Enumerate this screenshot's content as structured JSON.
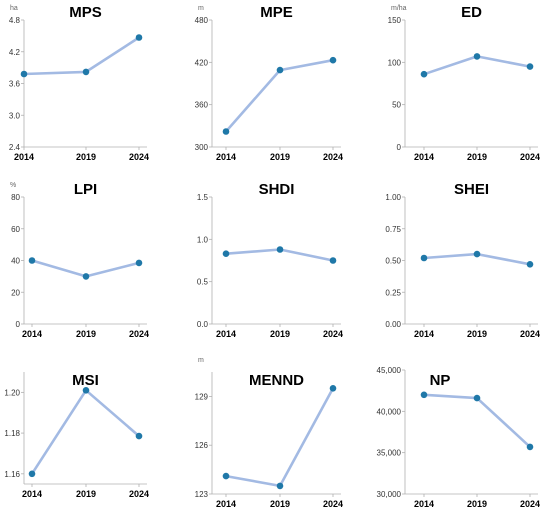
{
  "chart_data": [
    {
      "type": "line",
      "title": "MPS",
      "unit": "ha",
      "categories": [
        "2014",
        "2019",
        "2024"
      ],
      "values": [
        3.78,
        3.82,
        4.47
      ],
      "ylim": [
        2.4,
        4.8
      ],
      "yticks": [
        "2.4",
        "3.0",
        "3.6",
        "4.2",
        "4.8"
      ],
      "line_color": "#a3bae3",
      "marker_color": "#1f78a8"
    },
    {
      "type": "line",
      "title": "MPE",
      "unit": "m",
      "categories": [
        "2014",
        "2019",
        "2024"
      ],
      "values": [
        322,
        409,
        423
      ],
      "ylim": [
        300,
        480
      ],
      "yticks": [
        "300",
        "360",
        "420",
        "480"
      ],
      "line_color": "#a3bae3",
      "marker_color": "#1f78a8"
    },
    {
      "type": "line",
      "title": "ED",
      "unit": "m/ha",
      "categories": [
        "2014",
        "2019",
        "2024"
      ],
      "values": [
        86,
        107,
        95
      ],
      "ylim": [
        0,
        150
      ],
      "yticks": [
        "0",
        "50",
        "100",
        "150"
      ],
      "line_color": "#a3bae3",
      "marker_color": "#1f78a8"
    },
    {
      "type": "line",
      "title": "LPI",
      "unit": "%",
      "categories": [
        "2014",
        "2019",
        "2024"
      ],
      "values": [
        40,
        30,
        38.5
      ],
      "ylim": [
        0,
        80
      ],
      "yticks": [
        "0",
        "20",
        "40",
        "60",
        "80"
      ],
      "line_color": "#a3bae3",
      "marker_color": "#1f78a8"
    },
    {
      "type": "line",
      "title": "SHDI",
      "unit": "",
      "categories": [
        "2014",
        "2019",
        "2024"
      ],
      "values": [
        0.83,
        0.88,
        0.75
      ],
      "ylim": [
        0,
        1.5
      ],
      "yticks": [
        "0.0",
        "0.5",
        "1.0",
        "1.5"
      ],
      "line_color": "#a3bae3",
      "marker_color": "#1f78a8"
    },
    {
      "type": "line",
      "title": "SHEI",
      "unit": "",
      "categories": [
        "2014",
        "2019",
        "2024"
      ],
      "values": [
        0.52,
        0.55,
        0.47
      ],
      "ylim": [
        0,
        1
      ],
      "yticks": [
        "0.00",
        "0.25",
        "0.50",
        "0.75",
        "1.00"
      ],
      "line_color": "#a3bae3",
      "marker_color": "#1f78a8"
    },
    {
      "type": "line",
      "title": "MSI",
      "unit": "",
      "categories": [
        "2014",
        "2019",
        "2024"
      ],
      "values": [
        1.16,
        1.201,
        1.1785
      ],
      "ylim": [
        1.155,
        1.21
      ],
      "yticks": [
        "1.16",
        "1.18",
        "1.20"
      ],
      "ytick_values": [
        1.16,
        1.18,
        1.2
      ],
      "line_color": "#a3bae3",
      "marker_color": "#1f78a8"
    },
    {
      "type": "line",
      "title": "MENND",
      "unit": "m",
      "categories": [
        "2014",
        "2019",
        "2024"
      ],
      "values": [
        124.1,
        123.5,
        129.5
      ],
      "ylim": [
        123,
        130.5
      ],
      "yticks": [
        "123",
        "126",
        "129"
      ],
      "ytick_values": [
        123,
        126,
        129
      ],
      "line_color": "#a3bae3",
      "marker_color": "#1f78a8"
    },
    {
      "type": "line",
      "title": "NP",
      "unit": "",
      "categories": [
        "2014",
        "2019",
        "2024"
      ],
      "values": [
        42000,
        41600,
        35700
      ],
      "ylim": [
        30000,
        45000
      ],
      "yticks": [
        "30,000",
        "35,000",
        "40,000",
        "45,000"
      ],
      "line_color": "#a3bae3",
      "marker_color": "#1f78a8"
    }
  ]
}
